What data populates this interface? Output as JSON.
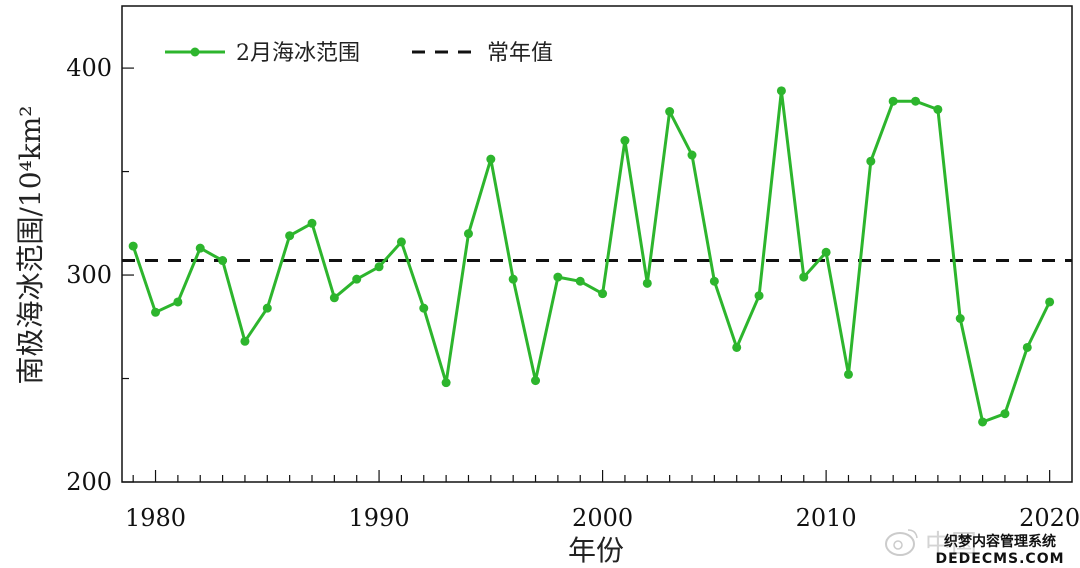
{
  "chart_data": {
    "type": "line",
    "xlabel": "年份",
    "ylabel": "南极海冰范围/10⁴km²",
    "xlim": [
      1978.5,
      2021
    ],
    "ylim": [
      200,
      430
    ],
    "xticks": [
      1980,
      1990,
      2000,
      2010,
      2020
    ],
    "yticks": [
      200,
      300,
      400
    ],
    "legend_position": "top-left",
    "series": [
      {
        "name": "2月海冰范围",
        "color": "#2db52d",
        "x": [
          1979,
          1980,
          1981,
          1982,
          1983,
          1984,
          1985,
          1986,
          1987,
          1988,
          1989,
          1990,
          1991,
          1992,
          1993,
          1994,
          1995,
          1996,
          1997,
          1998,
          1999,
          2000,
          2001,
          2002,
          2003,
          2004,
          2005,
          2006,
          2007,
          2008,
          2009,
          2010,
          2011,
          2012,
          2013,
          2014,
          2015,
          2016,
          2017,
          2018,
          2019,
          2020
        ],
        "y": [
          314,
          282,
          287,
          313,
          307,
          268,
          284,
          319,
          325,
          289,
          298,
          304,
          316,
          284,
          248,
          320,
          356,
          298,
          249,
          299,
          297,
          291,
          365,
          296,
          379,
          358,
          297,
          265,
          290,
          389,
          299,
          311,
          252,
          355,
          384,
          384,
          380,
          279,
          229,
          233,
          265,
          287
        ]
      }
    ],
    "reference_line": {
      "name": "常年值",
      "value": 307,
      "style": "dashed",
      "color": "#111111"
    }
  },
  "watermark": {
    "text_1": "中国",
    "text_2": "织梦内容管理系统",
    "text_3": "DEDECMS.COM"
  }
}
